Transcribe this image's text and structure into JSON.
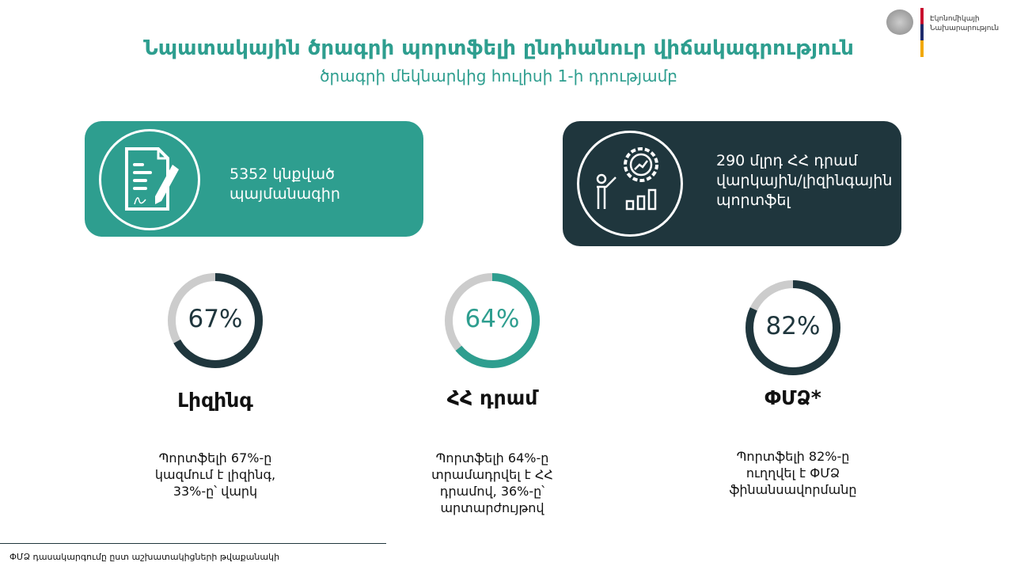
{
  "header": {
    "title": "Նպատակային ծրագրի պորտֆելի ընդհանուր վիճակագրություն",
    "subtitle": "ծրագրի մեկնարկից հուլիսի 1-ի դրությամբ"
  },
  "logo": {
    "ministry": "Էկոնոմիկայի Նախարարություն",
    "line1": "Էկոնոմիկայի",
    "line2": "Նախարարություն"
  },
  "cards": [
    {
      "icon": "signed-document-icon",
      "line1": "5352 կնքված",
      "line2": "պայմանագիր",
      "color": "#2e9e8f"
    },
    {
      "icon": "gear-growth-presenter-icon",
      "line1": "290 մլրդ ՀՀ դրամ",
      "line2": "վարկային/լիզինգային",
      "line3": "պորտֆել",
      "color": "#1f363d"
    }
  ],
  "chart_data": {
    "type": "donut",
    "items": [
      {
        "value": 67,
        "label": "67%",
        "heading": "Լիզինգ",
        "desc": [
          "Պորտֆելի 67%-ը",
          "կազմում է լիզինգ,",
          "33%-ը՝ վարկ"
        ],
        "color": "#1f363d"
      },
      {
        "value": 64,
        "label": "64%",
        "heading": "ՀՀ դրամ",
        "desc": [
          "Պորտֆելի 64%-ը",
          "տրամադրվել է  ՀՀ",
          "դրամով, 36%-ը՝",
          "արտարժույթով"
        ],
        "color": "#2e9e8f"
      },
      {
        "value": 82,
        "label": "82%",
        "heading": "ՓՄՁ*",
        "desc": [
          "Պորտֆելի 82%-ը",
          "ուղղվել է ՓՄՁ",
          "ֆինանսավորմանը"
        ],
        "color": "#1f363d"
      }
    ],
    "track_color": "#cccccc"
  },
  "footer": {
    "note": "ՓՄՁ դասակարգումը ըստ աշխատակիցների թվաքանակի"
  }
}
